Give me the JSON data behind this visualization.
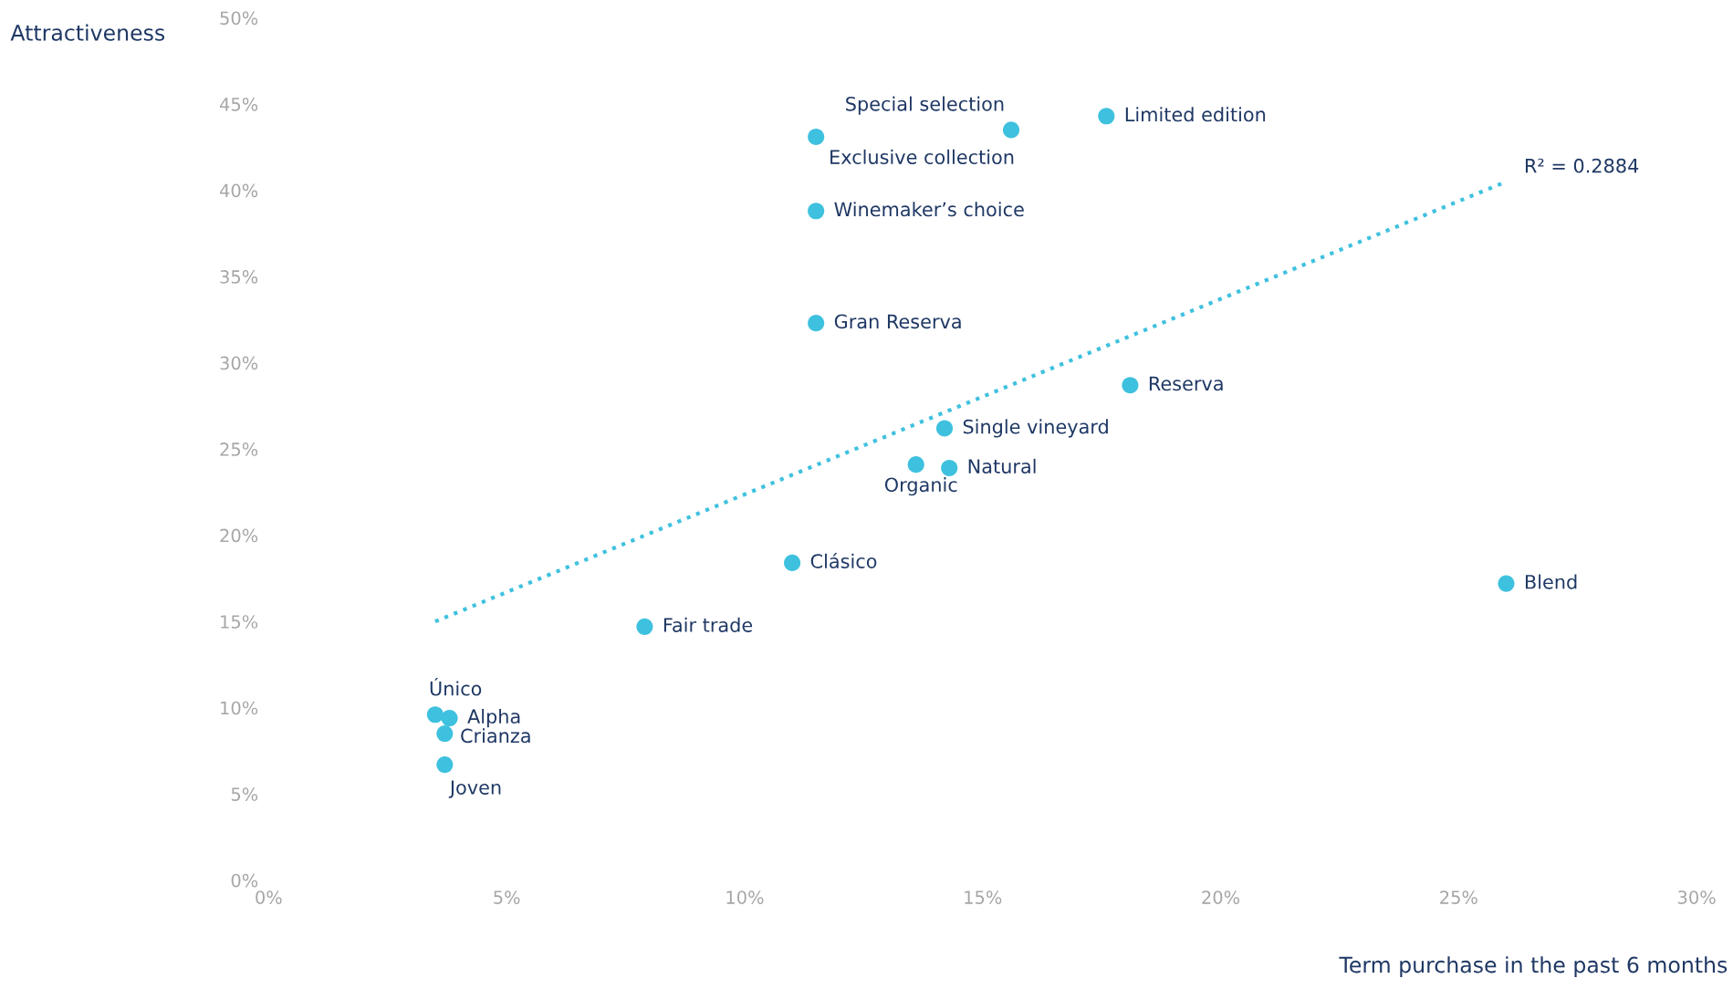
{
  "chart_data": {
    "type": "scatter",
    "xlabel": "Term purchase in the past 6 months",
    "ylabel": "Attractiveness",
    "xlim": [
      0,
      30
    ],
    "ylim": [
      0,
      50
    ],
    "xticks": [
      {
        "value": 0,
        "label": "0%"
      },
      {
        "value": 5,
        "label": "5%"
      },
      {
        "value": 10,
        "label": "10%"
      },
      {
        "value": 15,
        "label": "15%"
      },
      {
        "value": 20,
        "label": "20%"
      },
      {
        "value": 25,
        "label": "25%"
      },
      {
        "value": 30,
        "label": "30%"
      }
    ],
    "yticks": [
      {
        "value": 0,
        "label": "0%"
      },
      {
        "value": 5,
        "label": "5%"
      },
      {
        "value": 10,
        "label": "10%"
      },
      {
        "value": 15,
        "label": "15%"
      },
      {
        "value": 20,
        "label": "20%"
      },
      {
        "value": 25,
        "label": "25%"
      },
      {
        "value": 30,
        "label": "30%"
      },
      {
        "value": 35,
        "label": "35%"
      },
      {
        "value": 40,
        "label": "40%"
      },
      {
        "value": 45,
        "label": "45%"
      },
      {
        "value": 50,
        "label": "50%"
      }
    ],
    "grid": false,
    "legend": false,
    "marker": "circle",
    "series": [
      {
        "color": "#3ec1de",
        "x": [
          15.6,
          17.6,
          11.5,
          11.5,
          11.5,
          18.1,
          14.2,
          13.6,
          14.3,
          11.0,
          26.0,
          7.9,
          3.5,
          3.8,
          3.7,
          3.7
        ],
        "values": [
          43.5,
          44.3,
          43.1,
          38.8,
          32.3,
          28.7,
          26.2,
          24.1,
          23.9,
          18.4,
          17.2,
          14.7,
          9.6,
          9.4,
          8.5,
          6.7
        ]
      },
      {
        "type": "line",
        "color": "#3ec1de",
        "line_style": "dotted",
        "marker": "none",
        "x": [
          3.5,
          26.0
        ],
        "values": [
          15.0,
          40.5
        ]
      }
    ],
    "annotations": [
      {
        "text": "Special selection",
        "x": 15.6,
        "y": 43.5
      },
      {
        "text": "Limited edition",
        "x": 17.6,
        "y": 44.3
      },
      {
        "text": "Exclusive collection",
        "x": 11.5,
        "y": 43.1
      },
      {
        "text": "Winemaker’s choice",
        "x": 11.5,
        "y": 38.8
      },
      {
        "text": "Gran Reserva",
        "x": 11.5,
        "y": 32.3
      },
      {
        "text": "Reserva",
        "x": 18.1,
        "y": 28.7
      },
      {
        "text": "Single vineyard",
        "x": 14.2,
        "y": 26.2
      },
      {
        "text": "Organic",
        "x": 13.6,
        "y": 24.1
      },
      {
        "text": "Natural",
        "x": 14.3,
        "y": 23.9
      },
      {
        "text": "Clásico",
        "x": 11.0,
        "y": 18.4
      },
      {
        "text": "Blend",
        "x": 26.0,
        "y": 17.2
      },
      {
        "text": "Fair trade",
        "x": 7.9,
        "y": 14.7
      },
      {
        "text": "Único",
        "x": 3.5,
        "y": 9.6
      },
      {
        "text": "Alpha",
        "x": 3.8,
        "y": 9.4
      },
      {
        "text": "Crianza",
        "x": 3.7,
        "y": 8.5
      },
      {
        "text": "Joven",
        "x": 3.7,
        "y": 6.7
      },
      {
        "text": "R² = 0.2884",
        "x": 26.0,
        "y": 40.5
      }
    ]
  }
}
